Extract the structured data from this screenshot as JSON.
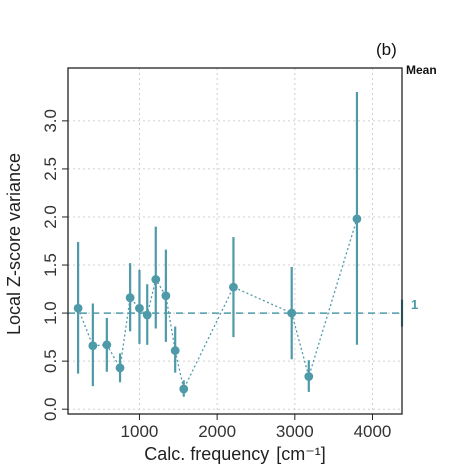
{
  "chart_data": {
    "type": "scatter",
    "panel_label": "(b)",
    "xlabel": "Calc. frequency",
    "xlabel_unit": "[cm⁻¹]",
    "ylabel": "Local Z-score variance",
    "xlim": [
      80,
      4380
    ],
    "ylim": [
      -0.05,
      3.55
    ],
    "x_ticks": [
      1000,
      2000,
      3000,
      4000
    ],
    "y_ticks": [
      0.0,
      0.5,
      1.0,
      1.5,
      2.0,
      2.5,
      3.0
    ],
    "y_tick_labels": [
      "0.0",
      "0.5",
      "1.0",
      "1.5",
      "2.0",
      "2.5",
      "3.0"
    ],
    "x_tick_labels": [
      "1000",
      "2000",
      "3000",
      "4000"
    ],
    "grid": true,
    "color": "#4e9aa9",
    "reference_line": {
      "y": 1.0,
      "label": "1"
    },
    "mean_column": {
      "title": "Mean",
      "value": 1.0,
      "lower": 0.86,
      "upper": 1.14
    },
    "points": [
      {
        "x": 210,
        "y": 1.05,
        "lower": 0.37,
        "upper": 1.74
      },
      {
        "x": 400,
        "y": 0.66,
        "lower": 0.24,
        "upper": 1.1
      },
      {
        "x": 580,
        "y": 0.67,
        "lower": 0.39,
        "upper": 0.95
      },
      {
        "x": 750,
        "y": 0.43,
        "lower": 0.28,
        "upper": 0.58
      },
      {
        "x": 880,
        "y": 1.16,
        "lower": 0.81,
        "upper": 1.52
      },
      {
        "x": 1000,
        "y": 1.05,
        "lower": 0.68,
        "upper": 1.45
      },
      {
        "x": 1100,
        "y": 0.98,
        "lower": 0.67,
        "upper": 1.3
      },
      {
        "x": 1210,
        "y": 1.35,
        "lower": 0.84,
        "upper": 1.9
      },
      {
        "x": 1340,
        "y": 1.18,
        "lower": 0.7,
        "upper": 1.66
      },
      {
        "x": 1460,
        "y": 0.61,
        "lower": 0.38,
        "upper": 0.86
      },
      {
        "x": 1570,
        "y": 0.21,
        "lower": 0.13,
        "upper": 0.3
      },
      {
        "x": 2210,
        "y": 1.27,
        "lower": 0.75,
        "upper": 1.79
      },
      {
        "x": 2960,
        "y": 1.0,
        "lower": 0.52,
        "upper": 1.48
      },
      {
        "x": 3180,
        "y": 0.34,
        "lower": 0.18,
        "upper": 0.51
      },
      {
        "x": 3800,
        "y": 1.98,
        "lower": 0.67,
        "upper": 3.3
      }
    ]
  }
}
